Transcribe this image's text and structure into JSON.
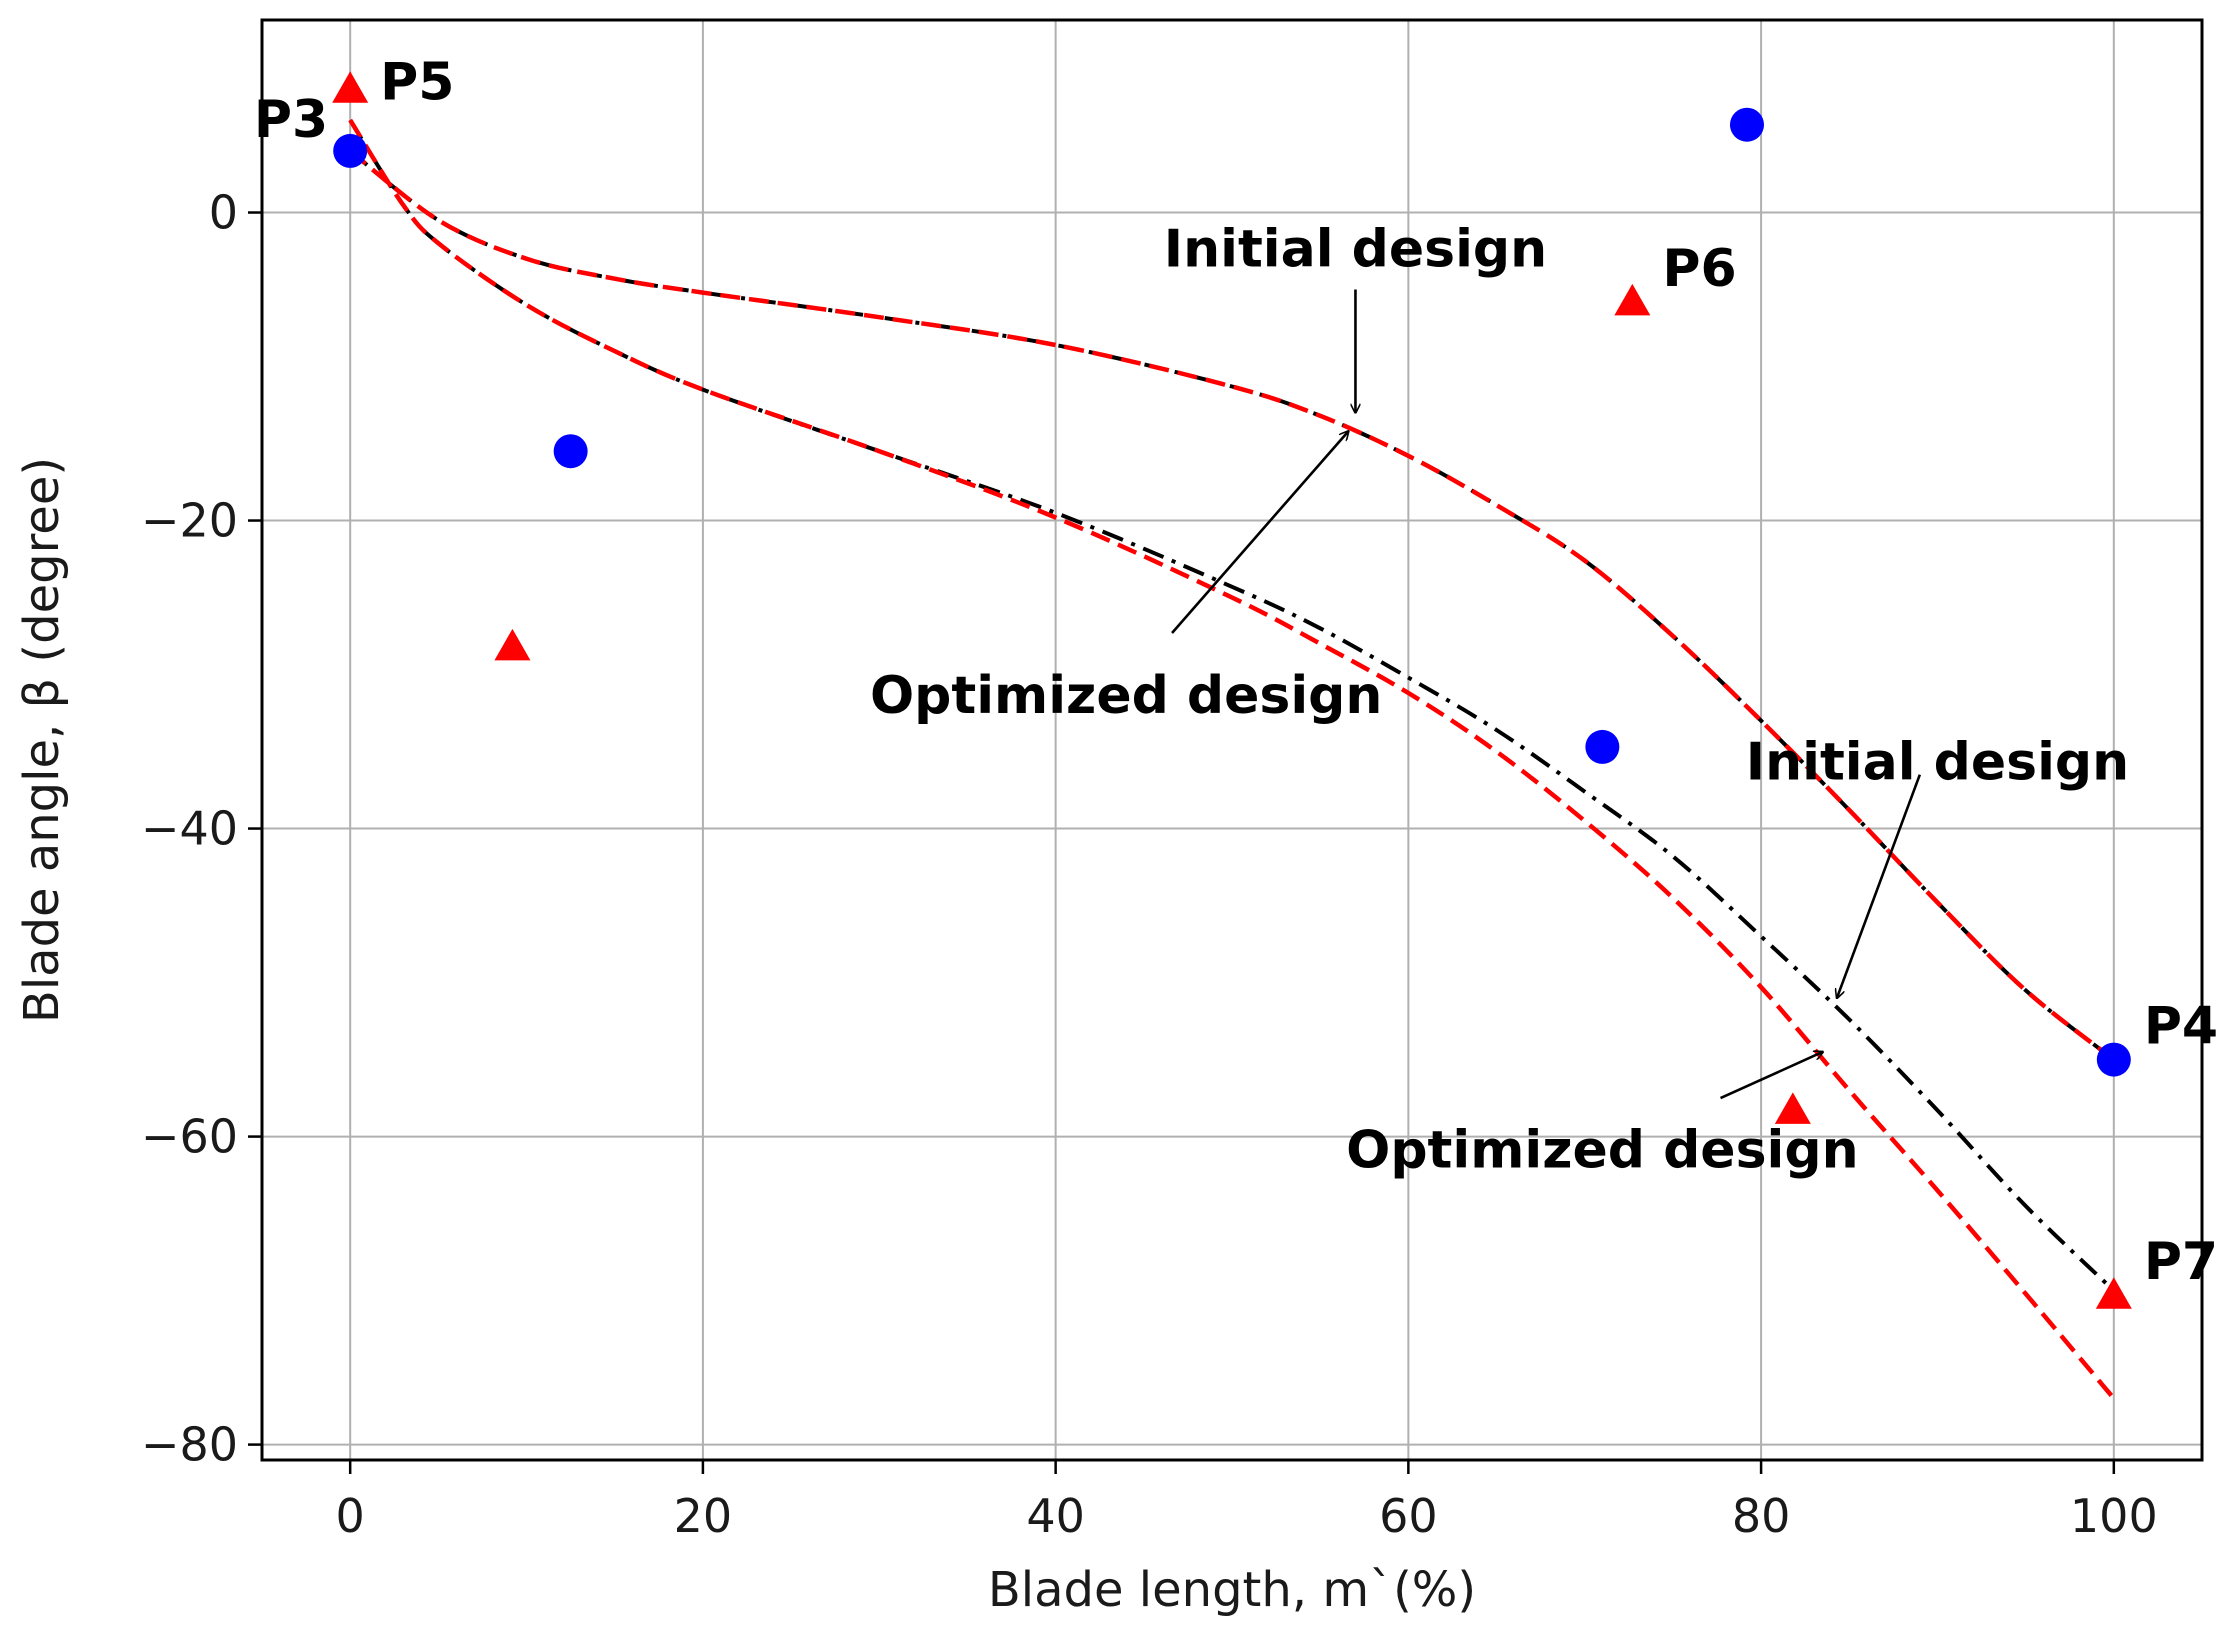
{
  "chart_data": {
    "type": "line",
    "title": "",
    "xlabel": "Blade length, m`(%)",
    "ylabel": "Blade angle, β (degree)",
    "xlim": [
      -5,
      105
    ],
    "ylim": [
      -81,
      12.5
    ],
    "xticks": [
      0,
      20,
      40,
      60,
      80,
      100
    ],
    "yticks": [
      0,
      -20,
      -40,
      -60,
      -80
    ],
    "grid": true,
    "series": [
      {
        "name": "Initial design (upper curve)",
        "style": "dashdot",
        "color": "#000000",
        "x": [
          0,
          5,
          10,
          15,
          20,
          30,
          40,
          50,
          55,
          60,
          65,
          70,
          75,
          80,
          85,
          90,
          95,
          100
        ],
        "y": [
          4,
          -0.5,
          -3,
          -4.3,
          -5.2,
          -6.8,
          -8.6,
          -11.3,
          -13.2,
          -15.8,
          -19,
          -22.6,
          -27.5,
          -33,
          -38.8,
          -44.8,
          -50.5,
          -55
        ]
      },
      {
        "name": "Optimized design (upper curve)",
        "style": "dashed",
        "color": "#ff0000",
        "x": [
          0,
          5,
          10,
          15,
          20,
          30,
          40,
          50,
          55,
          60,
          65,
          70,
          75,
          80,
          85,
          90,
          95,
          100
        ],
        "y": [
          4,
          -0.5,
          -3,
          -4.3,
          -5.2,
          -6.8,
          -8.6,
          -11.3,
          -13.2,
          -15.8,
          -19,
          -22.6,
          -27.5,
          -33,
          -38.8,
          -44.8,
          -50.5,
          -55
        ]
      },
      {
        "name": "Initial design (lower curve)",
        "style": "dashdot",
        "color": "#000000",
        "x": [
          0,
          3,
          5,
          10,
          15,
          20,
          30,
          40,
          50,
          55,
          60,
          65,
          70,
          75,
          80,
          85,
          90,
          95,
          100
        ],
        "y": [
          6,
          0.5,
          -2,
          -6,
          -9,
          -11.5,
          -15.5,
          -19.5,
          -24.3,
          -27,
          -30.2,
          -33.6,
          -37.6,
          -41.8,
          -47,
          -52.4,
          -58.3,
          -64.5,
          -70
        ]
      },
      {
        "name": "Optimized design (lower curve)",
        "style": "dashed",
        "color": "#ff0000",
        "x": [
          0,
          3,
          5,
          10,
          15,
          20,
          30,
          40,
          50,
          55,
          60,
          65,
          70,
          75,
          80,
          85,
          90,
          95,
          100
        ],
        "y": [
          6,
          0.5,
          -2,
          -6,
          -9,
          -11.5,
          -15.5,
          -19.8,
          -25,
          -28,
          -31.2,
          -35,
          -39.5,
          -44.5,
          -50.3,
          -57,
          -63.5,
          -70.2,
          -77
        ]
      }
    ],
    "points": [
      {
        "name": "P3",
        "marker": "circle",
        "color": "#0000ff",
        "x": 0,
        "y": 4,
        "label": "P3",
        "label_side": "left"
      },
      {
        "name": "circle-ctrl-1",
        "marker": "circle",
        "color": "#0000ff",
        "x": 12.5,
        "y": -15.5,
        "label": ""
      },
      {
        "name": "circle-ctrl-2",
        "marker": "circle",
        "color": "#0000ff",
        "x": 71,
        "y": -34.7,
        "label": ""
      },
      {
        "name": "circle-ctrl-3",
        "marker": "circle",
        "color": "#0000ff",
        "x": 79.2,
        "y": 5.7,
        "label": ""
      },
      {
        "name": "P4",
        "marker": "circle",
        "color": "#0000ff",
        "x": 100,
        "y": -55,
        "label": "P4",
        "label_side": "right"
      },
      {
        "name": "P5",
        "marker": "triangle",
        "color": "#ff0000",
        "x": 0,
        "y": 8,
        "label": "P5",
        "label_side": "right"
      },
      {
        "name": "tri-ctrl-1",
        "marker": "triangle",
        "color": "#ff0000",
        "x": 9.2,
        "y": -28.2,
        "label": ""
      },
      {
        "name": "P6",
        "marker": "triangle",
        "color": "#ff0000",
        "x": 72.7,
        "y": -5.8,
        "label": "P6",
        "label_side": "right"
      },
      {
        "name": "tri-ctrl-2",
        "marker": "triangle",
        "color": "#ff0000",
        "x": 81.8,
        "y": -58.3,
        "label": ""
      },
      {
        "name": "P7",
        "marker": "triangle",
        "color": "#ff0000",
        "x": 100,
        "y": -70.3,
        "label": "P7",
        "label_side": "right"
      }
    ],
    "annotations": [
      {
        "text": "Initial design",
        "text_x": 57,
        "text_y": -3.5,
        "arrow_from": [
          57,
          -5
        ],
        "arrow_to": [
          57,
          -13
        ]
      },
      {
        "text": "Optimized design",
        "text_x": 44,
        "text_y": -32.5,
        "arrow_from": [
          46.6,
          -27.3
        ],
        "arrow_to": [
          56.6,
          -14.2
        ]
      },
      {
        "text": "Initial design",
        "text_x": 90,
        "text_y": -36.8,
        "arrow_from": [
          89,
          -36.5
        ],
        "arrow_to": [
          84.3,
          -51
        ]
      },
      {
        "text": "Optimized design",
        "text_x": 71,
        "text_y": -62,
        "arrow_from": [
          77.7,
          -57.5
        ],
        "arrow_to": [
          83.5,
          -54.5
        ]
      }
    ]
  }
}
